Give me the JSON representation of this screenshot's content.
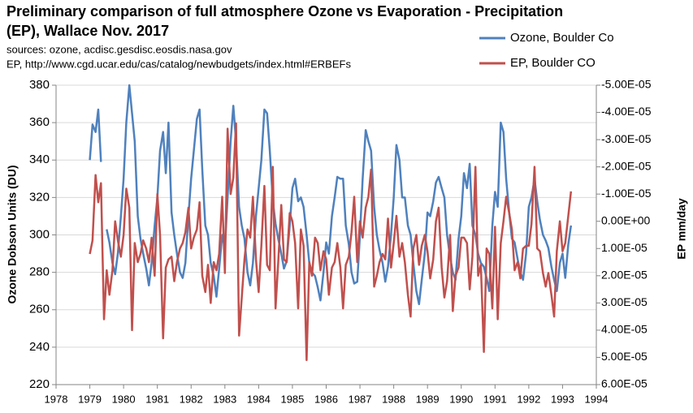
{
  "chart_data": {
    "type": "line",
    "title": [
      "Preliminary comparison of full atmosphere Ozone vs Evaporation - Precipitation",
      "(EP),  Wallace Nov. 2017"
    ],
    "subtitle": [
      "sources:  ozone,   acdisc.gesdisc.eosdis.nasa.gov",
      "EP, http://www.cgd.ucar.edu/cas/catalog/newbudgets/index.html#ERBEFs"
    ],
    "ylabel": "Ozone Dobson Units (DU)",
    "y2label": "EP  mm/day",
    "xlim": [
      1978,
      1994
    ],
    "xticks": [
      1978,
      1979,
      1980,
      1981,
      1982,
      1983,
      1984,
      1985,
      1986,
      1987,
      1988,
      1989,
      1990,
      1991,
      1992,
      1993,
      1994
    ],
    "ylim": [
      220,
      380
    ],
    "yticks": [
      220,
      240,
      260,
      280,
      300,
      320,
      340,
      360,
      380
    ],
    "y2lim": [
      -5e-05,
      6e-05
    ],
    "y2_inverted": true,
    "y2ticks": [
      {
        "value": -5e-05,
        "label": "-5.00E-05"
      },
      {
        "value": -4e-05,
        "label": "-4.00E-05"
      },
      {
        "value": -3e-05,
        "label": "-3.00E-05"
      },
      {
        "value": -2e-05,
        "label": "-2.00E-05"
      },
      {
        "value": -1e-05,
        "label": "-1.00E-05"
      },
      {
        "value": 0,
        "label": "0.00E+00"
      },
      {
        "value": 1e-05,
        "label": "1.00E-05"
      },
      {
        "value": 2e-05,
        "label": "2.00E-05"
      },
      {
        "value": 3e-05,
        "label": "3.00E-05"
      },
      {
        "value": 4e-05,
        "label": "4.00E-05"
      },
      {
        "value": 5e-05,
        "label": "5.00E-05"
      },
      {
        "value": 6e-05,
        "label": "6.00E-05"
      }
    ],
    "grid": true,
    "legend": "top-right",
    "x": [
      1979.0,
      1979.08,
      1979.17,
      1979.25,
      1979.33,
      1979.42,
      1979.5,
      1979.58,
      1979.67,
      1979.75,
      1979.83,
      1979.92,
      1980.0,
      1980.08,
      1980.17,
      1980.25,
      1980.33,
      1980.42,
      1980.5,
      1980.58,
      1980.67,
      1980.75,
      1980.83,
      1980.92,
      1981.0,
      1981.08,
      1981.17,
      1981.25,
      1981.33,
      1981.42,
      1981.5,
      1981.58,
      1981.67,
      1981.75,
      1981.83,
      1981.92,
      1982.0,
      1982.08,
      1982.17,
      1982.25,
      1982.33,
      1982.42,
      1982.5,
      1982.58,
      1982.67,
      1982.75,
      1982.83,
      1982.92,
      1983.0,
      1983.08,
      1983.17,
      1983.25,
      1983.33,
      1983.42,
      1983.5,
      1983.58,
      1983.67,
      1983.75,
      1983.83,
      1983.92,
      1984.0,
      1984.08,
      1984.17,
      1984.25,
      1984.33,
      1984.42,
      1984.5,
      1984.58,
      1984.67,
      1984.75,
      1984.83,
      1984.92,
      1985.0,
      1985.08,
      1985.17,
      1985.25,
      1985.33,
      1985.42,
      1985.5,
      1985.58,
      1985.67,
      1985.75,
      1985.83,
      1985.92,
      1986.0,
      1986.08,
      1986.17,
      1986.25,
      1986.33,
      1986.42,
      1986.5,
      1986.58,
      1986.67,
      1986.75,
      1986.83,
      1986.92,
      1987.0,
      1987.08,
      1987.17,
      1987.25,
      1987.33,
      1987.42,
      1987.5,
      1987.58,
      1987.67,
      1987.75,
      1987.83,
      1987.92,
      1988.0,
      1988.08,
      1988.17,
      1988.25,
      1988.33,
      1988.42,
      1988.5,
      1988.58,
      1988.67,
      1988.75,
      1988.83,
      1988.92,
      1989.0,
      1989.08,
      1989.17,
      1989.25,
      1989.33,
      1989.42,
      1989.5,
      1989.58,
      1989.67,
      1989.75,
      1989.83,
      1989.92,
      1990.0,
      1990.08,
      1990.17,
      1990.25,
      1990.33,
      1990.42,
      1990.5,
      1990.58,
      1990.67,
      1990.75,
      1990.83,
      1990.92,
      1991.0,
      1991.08,
      1991.17,
      1991.25,
      1991.33,
      1991.42,
      1991.5,
      1991.58,
      1991.67,
      1991.75,
      1991.83,
      1991.92,
      1992.0,
      1992.08,
      1992.17,
      1992.25,
      1992.33,
      1992.42,
      1992.5,
      1992.58,
      1992.67,
      1992.75,
      1992.83,
      1992.92,
      1993.0,
      1993.08,
      1993.17,
      1993.25
    ],
    "series": [
      {
        "name": "Ozone, Boulder Co",
        "color": "#4f81bd",
        "axis": "y",
        "values": [
          340,
          359,
          355,
          367,
          339,
          null,
          303,
          296,
          285,
          279,
          290,
          310,
          330,
          360,
          380,
          365,
          350,
          310,
          298,
          290,
          282,
          273,
          285,
          305,
          320,
          345,
          355,
          333,
          360,
          312,
          300,
          290,
          280,
          277,
          285,
          310,
          330,
          345,
          362,
          367,
          335,
          305,
          300,
          285,
          278,
          267,
          282,
          300,
          293,
          320,
          350,
          369,
          350,
          315,
          305,
          298,
          280,
          273,
          285,
          310,
          325,
          340,
          367,
          365,
          345,
          318,
          306,
          298,
          290,
          282,
          286,
          305,
          325,
          330,
          318,
          320,
          315,
          300,
          285,
          280,
          278,
          272,
          265,
          280,
          296,
          290,
          310,
          320,
          331,
          330,
          330,
          305,
          295,
          280,
          274,
          275,
          300,
          330,
          356,
          350,
          345,
          315,
          300,
          292,
          285,
          275,
          283,
          300,
          320,
          348,
          340,
          320,
          320,
          305,
          300,
          285,
          270,
          263,
          276,
          290,
          312,
          310,
          318,
          328,
          331,
          325,
          320,
          300,
          288,
          280,
          276,
          298,
          310,
          333,
          325,
          338,
          305,
          300,
          290,
          285,
          283,
          277,
          270,
          305,
          323,
          315,
          360,
          355,
          330,
          312,
          298,
          296,
          287,
          280,
          276,
          290,
          315,
          320,
          330,
          318,
          308,
          300,
          297,
          293,
          283,
          276,
          270,
          285,
          290,
          277,
          295,
          305
        ]
      },
      {
        "name": "EP, Boulder CO",
        "color": "#c0504d",
        "axis": "y2",
        "values": [
          1.2e-05,
          7e-06,
          -1.7e-05,
          -7e-06,
          -1.4e-05,
          3.6e-05,
          1.8e-05,
          2.7e-05,
          1.8e-05,
          0,
          7e-06,
          1.3e-05,
          5e-06,
          -1.2e-05,
          -5e-06,
          4e-05,
          8e-06,
          1.5e-05,
          1.2e-05,
          7e-06,
          1e-05,
          1.5e-05,
          6e-06,
          2e-05,
          -1e-05,
          5e-06,
          4.3e-05,
          1.7e-05,
          1.4e-05,
          1.3e-05,
          2.2e-05,
          1.5e-05,
          1e-05,
          8e-06,
          4e-06,
          -5e-06,
          1e-05,
          6e-06,
          3e-06,
          -7e-06,
          2e-05,
          2.6e-05,
          1.6e-05,
          3e-05,
          1.5e-05,
          1.8e-05,
          1.2e-05,
          -9e-06,
          1.9e-05,
          -3.4e-05,
          -1e-05,
          -1.6e-05,
          -3.6e-05,
          4.2e-05,
          2.8e-05,
          1.4e-05,
          3e-06,
          6e-06,
          -9e-06,
          1.4e-05,
          2.6e-05,
          9e-06,
          -1.3e-05,
          1.6e-05,
          1.8e-05,
          -2e-05,
          3.2e-05,
          1.5e-05,
          -6e-06,
          1.4e-05,
          1.5e-05,
          -3e-06,
          0,
          8e-06,
          3.2e-05,
          3e-06,
          9e-06,
          5.1e-05,
          1.5e-05,
          2e-05,
          6e-06,
          8e-06,
          1.8e-05,
          1.1e-05,
          1.4e-05,
          2.7e-05,
          1.7e-05,
          1.5e-05,
          8e-06,
          1.7e-05,
          3.2e-05,
          1.6e-05,
          1.3e-05,
          4e-06,
          -9e-06,
          1.5e-05,
          0,
          6e-06,
          -5e-06,
          -9e-06,
          -1.9e-05,
          2.4e-05,
          2e-05,
          1.5e-05,
          1.2e-05,
          1.4e-05,
          -1e-06,
          1.7e-05,
          8e-06,
          -2e-06,
          1.3e-05,
          8e-06,
          1.5e-05,
          2.7e-05,
          3.5e-05,
          1e-05,
          5e-06,
          1.6e-05,
          9e-06,
          5e-06,
          1.1e-05,
          2.1e-05,
          1.4e-05,
          0,
          -5e-06,
          1.7e-05,
          2.8e-05,
          2.2e-05,
          5e-06,
          3.3e-05,
          2e-05,
          1.7e-05,
          6e-06,
          6e-06,
          8e-06,
          2.5e-05,
          1.3e-05,
          -2e-05,
          2e-05,
          1.6e-05,
          4.8e-05,
          1e-05,
          1.2e-05,
          3.2e-05,
          2e-06,
          3.6e-05,
          8e-06,
          0,
          -9e-06,
          -3e-06,
          3e-06,
          1.8e-05,
          1.5e-05,
          2.1e-05,
          1e-05,
          9e-06,
          9e-06,
          1e-06,
          -2e-05,
          1e-05,
          1.1e-05,
          1.9e-05,
          2.4e-05,
          1.9e-05,
          2.7e-05,
          3.5e-05,
          1.1e-05,
          0,
          1.1e-05,
          8e-06,
          -2e-06,
          -1.1e-05
        ]
      }
    ]
  }
}
